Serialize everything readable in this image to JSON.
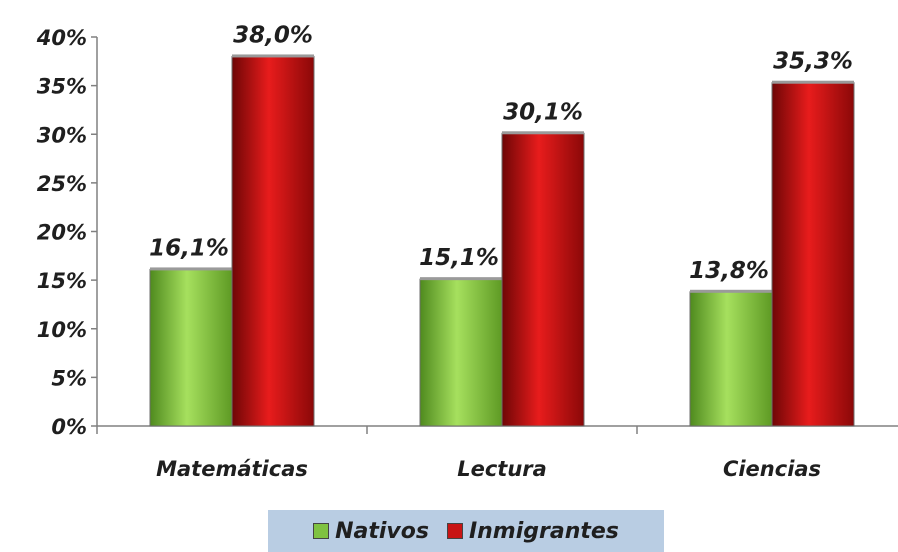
{
  "chart_data": {
    "type": "bar",
    "categories": [
      "Matemáticas",
      "Lectura",
      "Ciencias"
    ],
    "series": [
      {
        "name": "Nativos",
        "values": [
          16.1,
          15.1,
          13.8
        ],
        "labels": [
          "16,1%",
          "15,1%",
          "13,8%"
        ],
        "color": "#7fc241"
      },
      {
        "name": "Inmigrantes",
        "values": [
          38.0,
          30.1,
          35.3
        ],
        "labels": [
          "38,0%",
          "30,1%",
          "35,3%"
        ],
        "color": "#c81414"
      }
    ],
    "ylim": [
      0,
      40
    ],
    "yticks": [
      "0%",
      "5%",
      "10%",
      "15%",
      "20%",
      "25%",
      "30%",
      "35%",
      "40%"
    ],
    "ytick_values": [
      0,
      5,
      10,
      15,
      20,
      25,
      30,
      35,
      40
    ],
    "grid": false,
    "legend": {
      "position": "bottom",
      "background": "#b9cde3"
    }
  }
}
